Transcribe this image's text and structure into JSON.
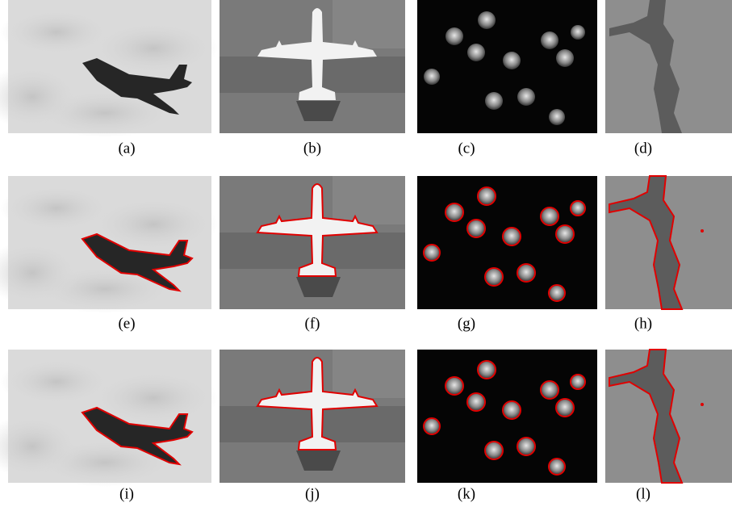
{
  "figure": {
    "captions": [
      "(a)",
      "(b)",
      "(c)",
      "(d)",
      "(e)",
      "(f)",
      "(g)",
      "(h)",
      "(i)",
      "(j)",
      "(k)",
      "(l)"
    ]
  }
}
